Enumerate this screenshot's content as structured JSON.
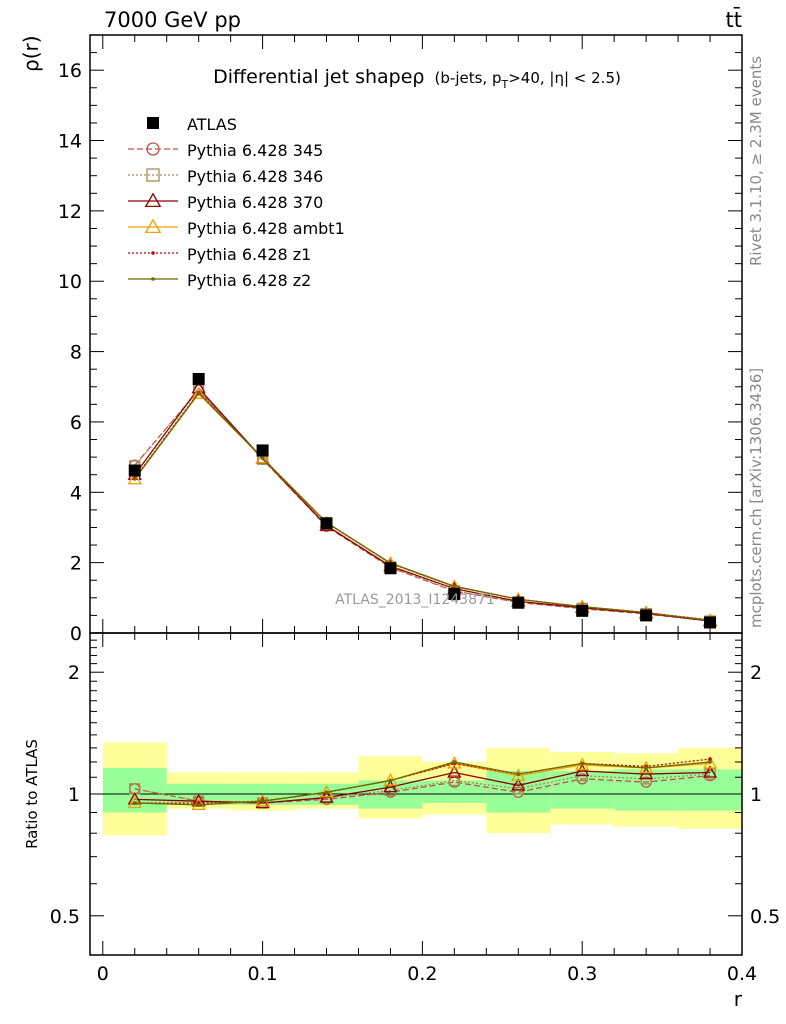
{
  "header": {
    "left": "7000 GeV pp",
    "right": "tt̄"
  },
  "side_labels": {
    "rivet": "Rivet 3.1.10, ≥ 2.3M events",
    "mcplots": "mcplots.cern.ch [arXiv:1306.3436]"
  },
  "watermark": "ATLAS_2013_I1243871",
  "colors": {
    "atlas": "#000000",
    "p345": "#c0504d",
    "p346": "#a88a55",
    "p370": "#8b0000",
    "ambt1": "#f0a000",
    "z1": "#cc0000",
    "z2": "#6b6b00",
    "band_inner": "#99ff99",
    "band_outer": "#ffff99"
  },
  "chart_data": [
    {
      "type": "line",
      "panel": "main",
      "title": "Differential jet shapeρ (b-jets, p_T>40, |η| < 2.5)",
      "title_main": "Differential jet shapeρ",
      "title_paren": "(b-jets, p",
      "title_sub": "T",
      "title_rest": ">40, |η| < 2.5)",
      "ylabel": "ρ(r)",
      "xlabel": "",
      "xlim": [
        -0.008,
        0.4
      ],
      "ylim": [
        0,
        17
      ],
      "yticks": [
        0,
        2,
        4,
        6,
        8,
        10,
        12,
        14,
        16
      ],
      "ytick_labels": [
        "0",
        "2",
        "4",
        "6",
        "8",
        "10",
        "12",
        "14",
        "16"
      ],
      "legend_position": "top-left",
      "x": [
        0.02,
        0.06,
        0.1,
        0.14,
        0.18,
        0.22,
        0.26,
        0.3,
        0.34,
        0.38
      ],
      "series": [
        {
          "name": "ATLAS",
          "style": "data",
          "values": [
            4.62,
            7.22,
            5.19,
            3.12,
            1.84,
            1.11,
            0.86,
            0.63,
            0.5,
            0.3
          ]
        },
        {
          "name": "Pythia 6.428 345",
          "style": "dashed-circle",
          "values": [
            4.77,
            6.9,
            4.94,
            3.03,
            1.86,
            1.19,
            0.87,
            0.69,
            0.54,
            0.34
          ]
        },
        {
          "name": "Pythia 6.428 346",
          "style": "dotted-square",
          "values": [
            4.75,
            6.91,
            4.94,
            3.05,
            1.88,
            1.2,
            0.88,
            0.7,
            0.55,
            0.34
          ]
        },
        {
          "name": "Pythia 6.428 370",
          "style": "solid-triangle",
          "values": [
            4.5,
            6.96,
            4.96,
            3.05,
            1.9,
            1.26,
            0.9,
            0.72,
            0.56,
            0.34
          ]
        },
        {
          "name": "Pythia 6.428 ambt1",
          "style": "solid-triangle-orange",
          "values": [
            4.37,
            6.8,
            4.97,
            3.13,
            1.98,
            1.32,
            0.96,
            0.75,
            0.58,
            0.36
          ]
        },
        {
          "name": "Pythia 6.428 z1",
          "style": "dotted-dot",
          "values": [
            4.4,
            6.84,
            4.98,
            3.14,
            1.98,
            1.32,
            0.96,
            0.75,
            0.58,
            0.37
          ]
        },
        {
          "name": "Pythia 6.428 z2",
          "style": "solid-dot",
          "values": [
            4.38,
            6.82,
            4.97,
            3.14,
            1.99,
            1.33,
            0.96,
            0.75,
            0.58,
            0.36
          ]
        }
      ]
    },
    {
      "type": "line",
      "panel": "ratio",
      "ylabel": "Ratio to ATLAS",
      "xlabel": "r",
      "xlim": [
        -0.008,
        0.4
      ],
      "ylim": [
        0.4,
        2.5
      ],
      "scale": "log",
      "yticks": [
        0.5,
        1,
        2
      ],
      "ytick_labels": [
        "0.5",
        "1",
        "2"
      ],
      "xticks": [
        0,
        0.1,
        0.2,
        0.3,
        0.4
      ],
      "xtick_labels": [
        "0",
        "0.1",
        "0.2",
        "0.3",
        "0.4"
      ],
      "x": [
        0.02,
        0.06,
        0.1,
        0.14,
        0.18,
        0.22,
        0.26,
        0.3,
        0.34,
        0.38
      ],
      "bins": [
        [
          0.0,
          0.04
        ],
        [
          0.04,
          0.08
        ],
        [
          0.08,
          0.12
        ],
        [
          0.12,
          0.16
        ],
        [
          0.16,
          0.2
        ],
        [
          0.2,
          0.24
        ],
        [
          0.24,
          0.28
        ],
        [
          0.28,
          0.32
        ],
        [
          0.32,
          0.36
        ],
        [
          0.36,
          0.4
        ]
      ],
      "band_inner": [
        [
          0.9,
          1.16
        ],
        [
          0.94,
          1.06
        ],
        [
          0.94,
          1.06
        ],
        [
          0.94,
          1.06
        ],
        [
          0.92,
          1.08
        ],
        [
          0.95,
          1.08
        ],
        [
          0.9,
          1.14
        ],
        [
          0.92,
          1.14
        ],
        [
          0.91,
          1.15
        ],
        [
          0.91,
          1.15
        ]
      ],
      "band_outer": [
        [
          0.79,
          1.34
        ],
        [
          0.92,
          1.13
        ],
        [
          0.91,
          1.13
        ],
        [
          0.92,
          1.13
        ],
        [
          0.87,
          1.24
        ],
        [
          0.89,
          1.2
        ],
        [
          0.8,
          1.3
        ],
        [
          0.84,
          1.27
        ],
        [
          0.83,
          1.26
        ],
        [
          0.82,
          1.3
        ]
      ],
      "series": [
        {
          "name": "Pythia 6.428 345",
          "values": [
            1.03,
            0.96,
            0.95,
            0.97,
            1.01,
            1.07,
            1.01,
            1.09,
            1.07,
            1.11
          ]
        },
        {
          "name": "Pythia 6.428 346",
          "values": [
            1.03,
            0.96,
            0.95,
            0.98,
            1.02,
            1.08,
            1.03,
            1.11,
            1.09,
            1.12
          ]
        },
        {
          "name": "Pythia 6.428 370",
          "values": [
            0.97,
            0.96,
            0.95,
            0.98,
            1.04,
            1.13,
            1.05,
            1.14,
            1.12,
            1.13
          ]
        },
        {
          "name": "Pythia 6.428 ambt1",
          "values": [
            0.95,
            0.94,
            0.96,
            1.01,
            1.08,
            1.19,
            1.11,
            1.18,
            1.16,
            1.19
          ]
        },
        {
          "name": "Pythia 6.428 z1",
          "values": [
            0.95,
            0.95,
            0.96,
            1.01,
            1.08,
            1.19,
            1.12,
            1.19,
            1.17,
            1.22
          ]
        },
        {
          "name": "Pythia 6.428 z2",
          "values": [
            0.95,
            0.94,
            0.96,
            1.01,
            1.08,
            1.2,
            1.12,
            1.19,
            1.16,
            1.2
          ]
        }
      ]
    }
  ]
}
